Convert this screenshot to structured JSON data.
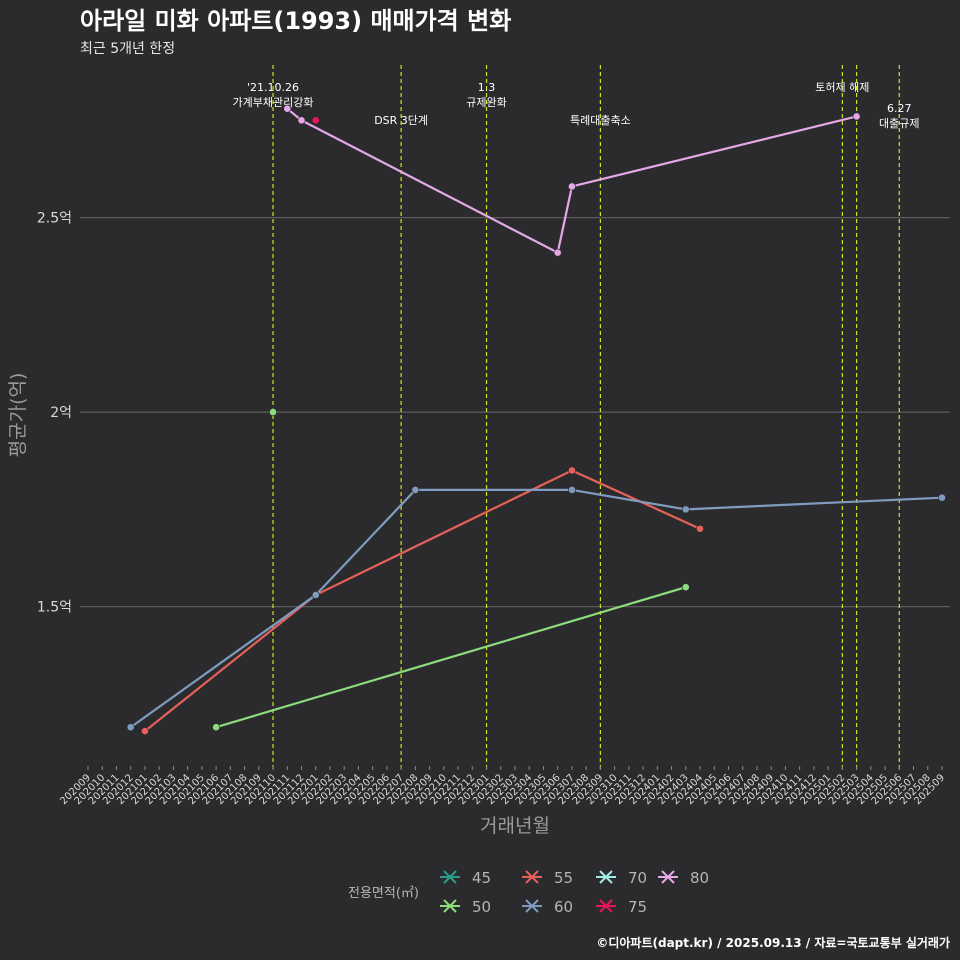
{
  "chart_data": {
    "type": "line",
    "title": "아라일 미화 아파트(1993) 매매가격 변화",
    "subtitle": "최근 5개년 한정",
    "xlabel": "거래년월",
    "ylabel": "평균가(억)",
    "caption": "©디아파트(dapt.kr) / 2025.09.13 / 자료=국토교통부 실거래가",
    "x_categories": [
      "202009",
      "202010",
      "202011",
      "202012",
      "202101",
      "202102",
      "202103",
      "202104",
      "202105",
      "202106",
      "202107",
      "202108",
      "202109",
      "202110",
      "202111",
      "202112",
      "202201",
      "202202",
      "202203",
      "202204",
      "202205",
      "202206",
      "202207",
      "202208",
      "202209",
      "202210",
      "202211",
      "202212",
      "202301",
      "202302",
      "202303",
      "202304",
      "202305",
      "202306",
      "202307",
      "202308",
      "202309",
      "202310",
      "202311",
      "202312",
      "202401",
      "202402",
      "202403",
      "202404",
      "202405",
      "202406",
      "202407",
      "202408",
      "202409",
      "202410",
      "202411",
      "202412",
      "202501",
      "202502",
      "202503",
      "202504",
      "202505",
      "202506",
      "202507",
      "202508",
      "202509"
    ],
    "y_ticks": [
      {
        "value": 1.5,
        "label": "1.5억"
      },
      {
        "value": 2.0,
        "label": "2억"
      },
      {
        "value": 2.5,
        "label": "2.5억"
      }
    ],
    "ylim": [
      1.08,
      2.9
    ],
    "legend": {
      "title": "전용면적(㎡)",
      "position": "bottom",
      "entries": [
        {
          "name": "45",
          "color": "#2a9d8f"
        },
        {
          "name": "55",
          "color": "#e5615a"
        },
        {
          "name": "70",
          "color": "#a3ecec"
        },
        {
          "name": "80",
          "color": "#e5a8e6"
        },
        {
          "name": "50",
          "color": "#8ddc7c"
        },
        {
          "name": "60",
          "color": "#7f9cc0"
        },
        {
          "name": "75",
          "color": "#e8165a"
        }
      ]
    },
    "series": [
      {
        "name": "55",
        "color": "#e5615a",
        "points": [
          [
            "202101",
            1.18
          ],
          [
            "202201",
            1.53
          ],
          [
            "202307",
            1.85
          ],
          [
            "202404",
            1.7
          ]
        ]
      },
      {
        "name": "60",
        "color": "#7f9cc0",
        "points": [
          [
            "202012",
            1.19
          ],
          [
            "202201",
            1.53
          ],
          [
            "202208",
            1.8
          ],
          [
            "202307",
            1.8
          ],
          [
            "202403",
            1.75
          ],
          [
            "202509",
            1.78
          ]
        ]
      },
      {
        "name": "50",
        "color": "#8ddc7c",
        "points": [
          [
            "202106",
            1.19
          ],
          [
            "202110",
            2.0
          ],
          [
            "202403",
            1.55
          ]
        ],
        "connect": [
          [
            0,
            2
          ]
        ]
      },
      {
        "name": "80",
        "color": "#e5a8e6",
        "points": [
          [
            "202111",
            2.78
          ],
          [
            "202112",
            2.75
          ],
          [
            "202306",
            2.41
          ],
          [
            "202307",
            2.58
          ],
          [
            "202503",
            2.76
          ]
        ]
      },
      {
        "name": "75",
        "color": "#e8165a",
        "points": [
          [
            "202201",
            2.75
          ]
        ]
      }
    ],
    "events": [
      {
        "x": "202110",
        "lines": [
          "'21.10.26",
          "가계부채관리강화"
        ],
        "level": "high"
      },
      {
        "x": "202207",
        "lines": [
          "DSR 3단계"
        ],
        "level": "low"
      },
      {
        "x": "202301",
        "lines": [
          "1.3",
          "규제완화"
        ],
        "level": "high"
      },
      {
        "x": "202309",
        "lines": [
          "특례대출축소"
        ],
        "level": "low"
      },
      {
        "x": "202502",
        "lines": [
          "토허제 해제"
        ],
        "level": "high"
      },
      {
        "x": "202503",
        "lines": [],
        "level": "none"
      },
      {
        "x": "202506",
        "lines": [
          "6.27",
          "대출규제"
        ],
        "level": "mid"
      }
    ]
  }
}
